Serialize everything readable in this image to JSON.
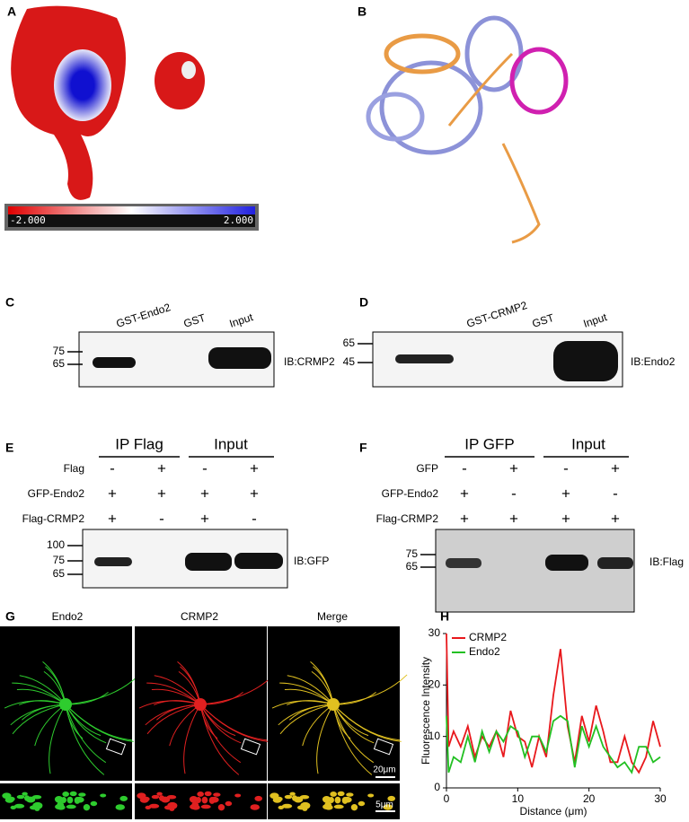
{
  "letters": [
    "A",
    "B",
    "C",
    "D",
    "E",
    "F",
    "G",
    "H"
  ],
  "panel_a": {
    "colorbar_labels": [
      "-2.000",
      "2.000"
    ]
  },
  "panel_c": {
    "lanes": [
      "GST-Endo2",
      "GST",
      "Input"
    ],
    "markers": [
      75,
      65
    ],
    "blot": "IB:CRMP2"
  },
  "panel_d": {
    "lanes": [
      "GST-CRMP2",
      "GST",
      "Input"
    ],
    "markers": [
      65,
      45
    ],
    "blot": "IB:Endo2"
  },
  "panel_e": {
    "groups": [
      "IP Flag",
      "Input"
    ],
    "rows": [
      {
        "label": "Flag",
        "signs": [
          "-",
          "+",
          "-",
          "+"
        ]
      },
      {
        "label": "GFP-Endo2",
        "signs": [
          "+",
          "+",
          "+",
          "+"
        ]
      },
      {
        "label": "Flag-CRMP2",
        "signs": [
          "+",
          "-",
          "+",
          "-"
        ]
      }
    ],
    "markers": [
      100,
      75,
      65
    ],
    "blot": "IB:GFP"
  },
  "panel_f": {
    "groups": [
      "IP GFP",
      "Input"
    ],
    "rows": [
      {
        "label": "GFP",
        "signs": [
          "-",
          "+",
          "-",
          "+"
        ]
      },
      {
        "label": "GFP-Endo2",
        "signs": [
          "+",
          "-",
          "+",
          "-"
        ]
      },
      {
        "label": "Flag-CRMP2",
        "signs": [
          "+",
          "+",
          "+",
          "+"
        ]
      }
    ],
    "markers": [
      75,
      65
    ],
    "blot": "IB:Flag"
  },
  "panel_g": {
    "titles": [
      "Endo2",
      "CRMP2",
      "Merge"
    ],
    "scale_bars": [
      "20μm",
      "5μm"
    ]
  },
  "chart_data": {
    "type": "line",
    "xlabel": "Distance (μm)",
    "ylabel": "Fluorescence Intensity",
    "x": [
      0,
      0.3,
      1,
      2,
      3,
      4,
      5,
      6,
      7,
      8,
      9,
      10,
      11,
      12,
      13,
      14,
      15,
      16,
      17,
      18,
      19,
      20,
      21,
      22,
      23,
      24,
      25,
      26,
      27,
      28,
      29,
      30
    ],
    "series": [
      {
        "name": "CRMP2",
        "color": "#e8181c",
        "values": [
          30,
          8,
          11,
          8,
          12,
          6,
          10,
          8,
          11,
          6,
          15,
          10,
          9,
          4,
          10,
          6,
          18,
          27,
          12,
          5,
          14,
          9,
          16,
          11,
          5,
          5,
          10,
          5,
          3,
          6,
          13,
          8
        ]
      },
      {
        "name": "Endo2",
        "color": "#22c022",
        "values": [
          14,
          3,
          6,
          5,
          10,
          5,
          11,
          7,
          11,
          9,
          12,
          11,
          6,
          10,
          10,
          7,
          13,
          14,
          13,
          4,
          12,
          8,
          12,
          8,
          6,
          4,
          5,
          3,
          8,
          8,
          5,
          6
        ]
      }
    ],
    "xlim": [
      0,
      30
    ],
    "ylim": [
      0,
      30
    ],
    "xticks": [
      0,
      10,
      20,
      30
    ],
    "yticks": [
      0,
      10,
      20,
      30
    ]
  }
}
